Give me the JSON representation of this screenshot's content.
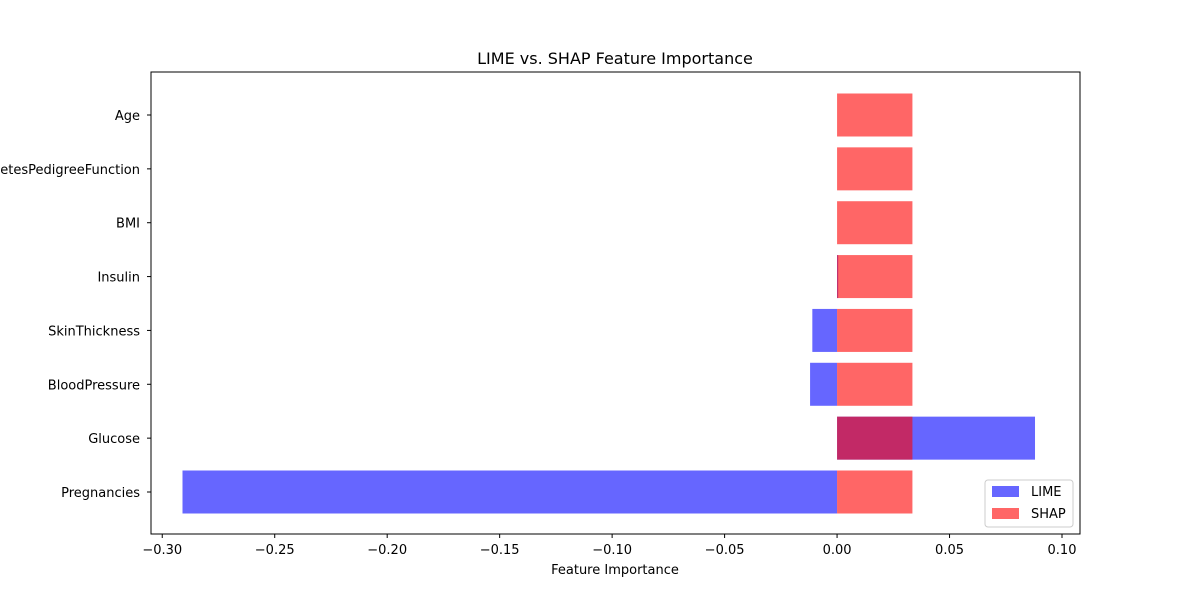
{
  "chart_data": {
    "type": "bar",
    "orientation": "horizontal",
    "title": "LIME vs. SHAP Feature Importance",
    "xlabel": "Feature Importance",
    "ylabel": "",
    "xlim": [
      -0.305,
      0.108
    ],
    "xticks": [
      -0.3,
      -0.25,
      -0.2,
      -0.15,
      -0.1,
      -0.05,
      0.0,
      0.05,
      0.1
    ],
    "xtick_labels": [
      "−0.30",
      "−0.25",
      "−0.20",
      "−0.15",
      "−0.10",
      "−0.05",
      "0.00",
      "0.05",
      "0.10"
    ],
    "categories": [
      "Pregnancies",
      "Glucose",
      "BloodPressure",
      "SkinThickness",
      "Insulin",
      "BMI",
      "DiabetesPedigreeFunction",
      "Age"
    ],
    "series": [
      {
        "name": "LIME",
        "color": "#6666ff",
        "values": [
          -0.291,
          0.088,
          -0.012,
          -0.011,
          0.0005,
          0.0,
          0.0,
          0.0
        ]
      },
      {
        "name": "SHAP",
        "color": "#ff6666",
        "values": [
          0.0335,
          0.0335,
          0.0335,
          0.0335,
          0.0335,
          0.0335,
          0.0335,
          0.0335
        ]
      }
    ],
    "legend": {
      "position": "lower-right"
    },
    "grid": false
  }
}
